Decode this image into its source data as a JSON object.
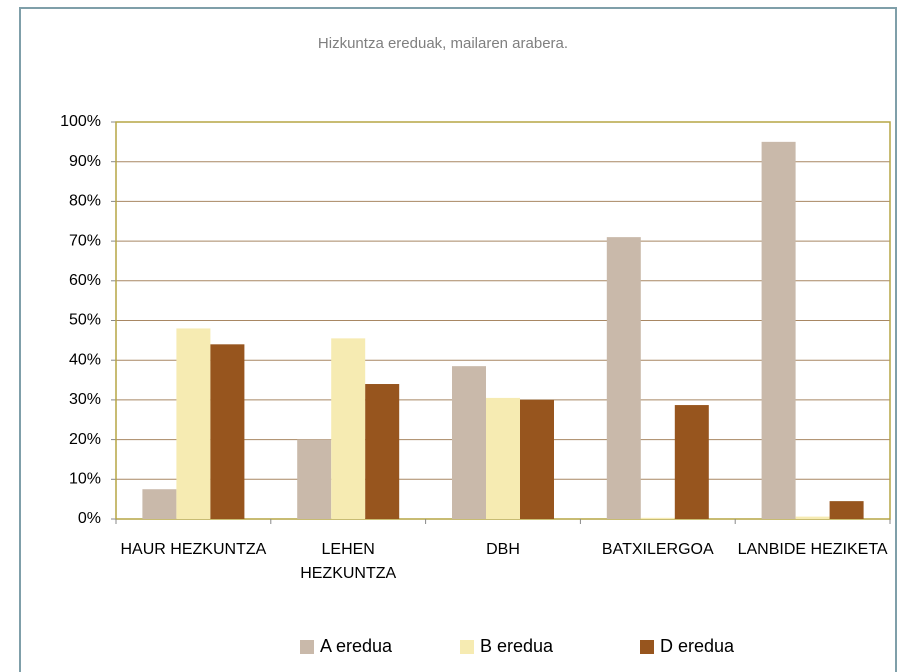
{
  "chart_data": {
    "type": "bar",
    "title": "Hizkuntza ereduak, mailaren arabera.",
    "categories": [
      "HAUR HEZKUNTZA",
      "LEHEN HEZKUNTZA",
      "DBH",
      "BATXILERGOA",
      "LANBIDE HEZIKETA"
    ],
    "series": [
      {
        "name": "A eredua",
        "color": "#c9b9aa",
        "values": [
          7.5,
          20,
          38.5,
          71,
          95
        ]
      },
      {
        "name": "B eredua",
        "color": "#f6ebb2",
        "values": [
          48,
          45.5,
          30.5,
          0.3,
          0.6
        ]
      },
      {
        "name": "D eredua",
        "color": "#97551e",
        "values": [
          44,
          34,
          30,
          28.7,
          4.5
        ]
      }
    ],
    "ylim": [
      0,
      100
    ],
    "yticks": [
      {
        "value": 0,
        "label": "0%"
      },
      {
        "value": 10,
        "label": "10%"
      },
      {
        "value": 20,
        "label": "20%"
      },
      {
        "value": 30,
        "label": "30%"
      },
      {
        "value": 40,
        "label": "40%"
      },
      {
        "value": 50,
        "label": "50%"
      },
      {
        "value": 60,
        "label": "60%"
      },
      {
        "value": 70,
        "label": "70%"
      },
      {
        "value": 80,
        "label": "80%"
      },
      {
        "value": 90,
        "label": "90%"
      },
      {
        "value": 100,
        "label": "100%"
      }
    ],
    "grid": true,
    "legend": "bottom"
  }
}
